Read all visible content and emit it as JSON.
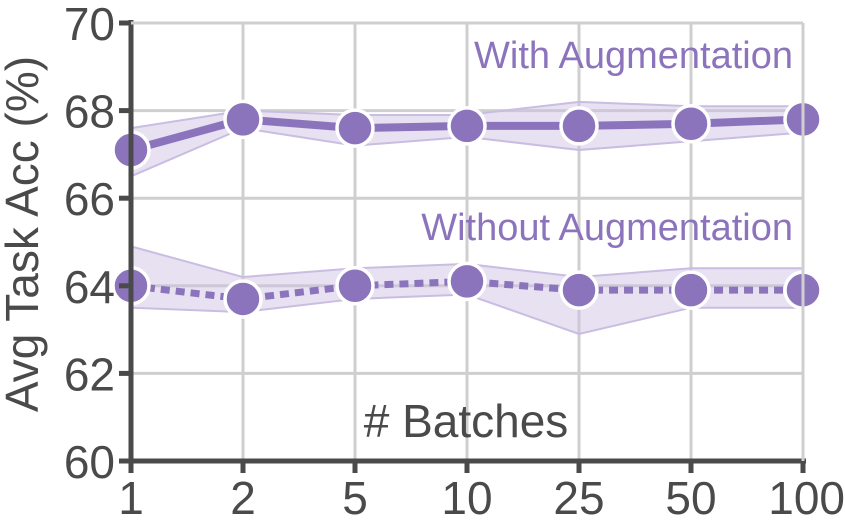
{
  "chart_data": {
    "type": "line",
    "xlabel": "# Batches",
    "ylabel": "Avg Task Acc (%)",
    "categories": [
      "1",
      "2",
      "5",
      "10",
      "25",
      "50",
      "100"
    ],
    "ylim": [
      60,
      70
    ],
    "yticks": [
      "60",
      "62",
      "64",
      "66",
      "68",
      "70"
    ],
    "grid": true,
    "color": "#8c74bc",
    "band_color": "#c9bde2",
    "series": [
      {
        "name": "With Augmentation",
        "line_style": "solid",
        "values": [
          67.1,
          67.8,
          67.6,
          67.65,
          67.65,
          67.7,
          67.8
        ],
        "lower": [
          66.5,
          67.6,
          67.2,
          67.4,
          67.1,
          67.3,
          67.5
        ],
        "upper": [
          67.6,
          68.0,
          67.9,
          67.9,
          68.2,
          68.1,
          68.1
        ]
      },
      {
        "name": "Without Augmentation",
        "line_style": "dotted",
        "values": [
          64.0,
          63.7,
          64.0,
          64.1,
          63.9,
          63.9,
          63.9
        ],
        "lower": [
          63.5,
          63.4,
          63.7,
          63.8,
          62.9,
          63.5,
          63.5
        ],
        "upper": [
          64.9,
          64.2,
          64.4,
          64.5,
          64.2,
          64.4,
          64.4
        ]
      }
    ]
  }
}
